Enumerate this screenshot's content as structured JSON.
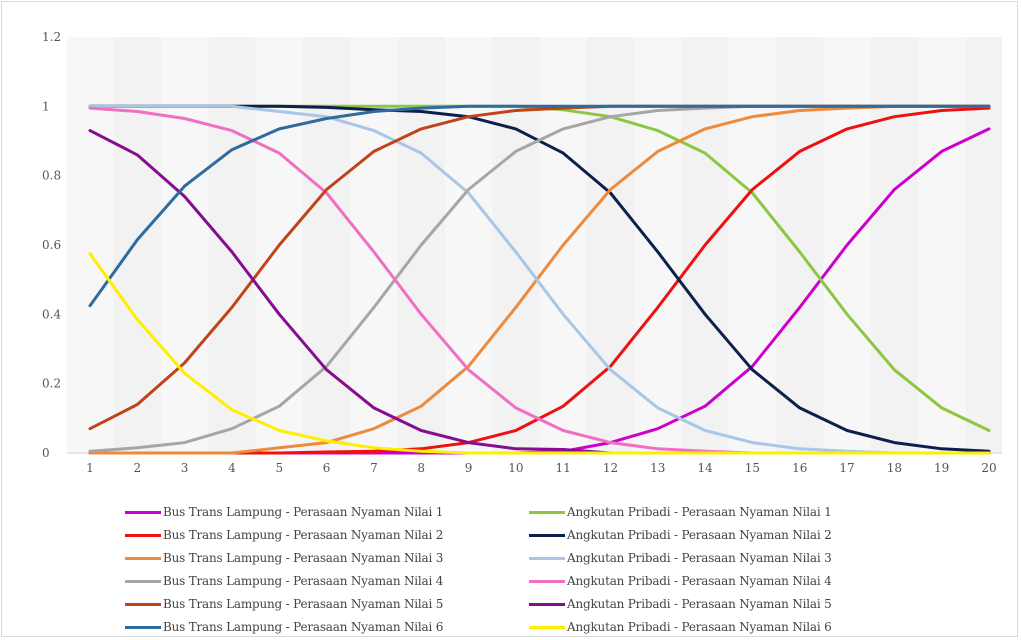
{
  "chart_data": {
    "type": "line",
    "title": "",
    "xlabel": "",
    "ylabel": "",
    "x": [
      1,
      2,
      3,
      4,
      5,
      6,
      7,
      8,
      9,
      10,
      11,
      12,
      13,
      14,
      15,
      16,
      17,
      18,
      19,
      20
    ],
    "xlim": [
      1,
      20
    ],
    "ylim": [
      0,
      1.2
    ],
    "yticks": [
      0,
      0.2,
      0.4,
      0.6,
      0.8,
      1,
      1.2
    ],
    "ytick_labels": [
      "0",
      "0.2",
      "0.4",
      "0.6",
      "0.8",
      "1",
      "1.2"
    ],
    "xtick_labels": [
      "1",
      "2",
      "3",
      "4",
      "5",
      "6",
      "7",
      "8",
      "9",
      "10",
      "11",
      "12",
      "13",
      "14",
      "15",
      "16",
      "17",
      "18",
      "19",
      "20"
    ],
    "grid": "vertical stripes",
    "background": "#f2f2f2",
    "legend_position": "bottom",
    "series": [
      {
        "name": "Bus Trans Lampung - Perasaan Nyaman Nilai 1",
        "color": "#cc00cc",
        "values": [
          0,
          0,
          0,
          0,
          0,
          0,
          0,
          0,
          0,
          0,
          0.005,
          0.03,
          0.07,
          0.135,
          0.25,
          0.42,
          0.6,
          0.76,
          0.87,
          0.935
        ]
      },
      {
        "name": "Angkutan Pribadi - Perasaan Nyaman Nilai 1",
        "color": "#8dc641",
        "values": [
          1,
          1,
          1,
          1,
          1,
          1,
          1,
          1,
          1,
          1,
          0.99,
          0.97,
          0.93,
          0.865,
          0.75,
          0.58,
          0.4,
          0.24,
          0.13,
          0.065
        ]
      },
      {
        "name": "Bus Trans Lampung - Perasaan Nyaman Nilai 2",
        "color": "#ee1111",
        "values": [
          0,
          0,
          0,
          0,
          0,
          0.003,
          0.005,
          0.012,
          0.03,
          0.065,
          0.135,
          0.25,
          0.42,
          0.6,
          0.76,
          0.87,
          0.935,
          0.97,
          0.988,
          0.995
        ]
      },
      {
        "name": "Angkutan Pribadi - Perasaan Nyaman Nilai 2",
        "color": "#0d1f4d",
        "values": [
          1,
          1,
          1,
          1,
          1,
          0.997,
          0.99,
          0.985,
          0.97,
          0.935,
          0.865,
          0.75,
          0.58,
          0.4,
          0.24,
          0.13,
          0.065,
          0.03,
          0.012,
          0.005
        ]
      },
      {
        "name": "Bus Trans Lampung - Perasaan Nyaman Nilai 3",
        "color": "#ed8a3c",
        "values": [
          0,
          0,
          0,
          0,
          0.015,
          0.03,
          0.07,
          0.135,
          0.25,
          0.42,
          0.6,
          0.76,
          0.87,
          0.935,
          0.97,
          0.988,
          0.995,
          1,
          1,
          1
        ]
      },
      {
        "name": "Angkutan Pribadi - Perasaan Nyaman Nilai 3",
        "color": "#a8c6e8",
        "values": [
          1,
          1,
          1,
          1,
          0.985,
          0.97,
          0.93,
          0.865,
          0.75,
          0.58,
          0.4,
          0.24,
          0.13,
          0.065,
          0.03,
          0.012,
          0.005,
          0,
          0,
          0
        ]
      },
      {
        "name": "Bus Trans Lampung - Perasaan Nyaman Nilai 4",
        "color": "#a6a6a6",
        "values": [
          0.005,
          0.015,
          0.03,
          0.07,
          0.135,
          0.25,
          0.42,
          0.6,
          0.76,
          0.87,
          0.935,
          0.97,
          0.988,
          0.995,
          1,
          1,
          1,
          1,
          1,
          1
        ]
      },
      {
        "name": "Angkutan Pribadi - Perasaan Nyaman Nilai 4",
        "color": "#f06fc3",
        "values": [
          0.995,
          0.985,
          0.965,
          0.93,
          0.865,
          0.75,
          0.58,
          0.4,
          0.24,
          0.13,
          0.065,
          0.03,
          0.012,
          0.005,
          0,
          0,
          0,
          0,
          0,
          0
        ]
      },
      {
        "name": "Bus Trans Lampung - Perasaan Nyaman Nilai 5",
        "color": "#c0441a",
        "values": [
          0.07,
          0.14,
          0.26,
          0.42,
          0.6,
          0.76,
          0.87,
          0.935,
          0.97,
          0.988,
          0.995,
          1,
          1,
          1,
          1,
          1,
          1,
          1,
          1,
          1
        ]
      },
      {
        "name": "Angkutan Pribadi - Perasaan Nyaman Nilai 5",
        "color": "#860d8f",
        "values": [
          0.93,
          0.86,
          0.74,
          0.58,
          0.4,
          0.24,
          0.13,
          0.065,
          0.03,
          0.012,
          0.01,
          0,
          0,
          0,
          0,
          0,
          0,
          0,
          0,
          0
        ]
      },
      {
        "name": "Bus Trans Lampung - Perasaan Nyaman Nilai 6",
        "color": "#2f6b9c",
        "values": [
          0.425,
          0.615,
          0.77,
          0.875,
          0.935,
          0.965,
          0.985,
          0.995,
          1,
          1,
          1,
          1,
          1,
          1,
          1,
          1,
          1,
          1,
          1,
          1
        ]
      },
      {
        "name": "Angkutan Pribadi - Perasaan Nyaman Nilai 6",
        "color": "#ffee00",
        "values": [
          0.575,
          0.385,
          0.23,
          0.125,
          0.065,
          0.035,
          0.015,
          0.005,
          0,
          0,
          0,
          0,
          0,
          0,
          0,
          0,
          0,
          0,
          0,
          0
        ]
      }
    ]
  }
}
